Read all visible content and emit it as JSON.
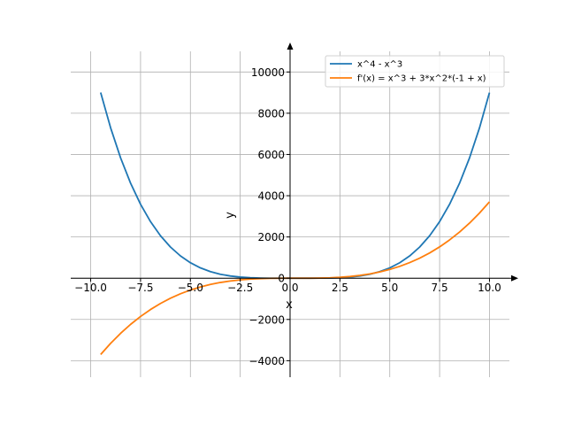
{
  "chart_data": {
    "type": "line",
    "title": "",
    "xlabel": "x",
    "ylabel": "y",
    "xlim": [
      -11,
      11
    ],
    "ylim": [
      -4800,
      11000
    ],
    "grid": true,
    "legend_position": "top-right",
    "x_ticks": [
      -10,
      -7.5,
      -5,
      -2.5,
      0,
      2.5,
      5,
      7.5,
      10
    ],
    "x_tick_labels": [
      "−10.0",
      "−7.5",
      "−5.0",
      "−2.5",
      "0.0",
      "2.5",
      "5.0",
      "7.5",
      "10.0"
    ],
    "y_ticks": [
      -4000,
      -2000,
      0,
      2000,
      4000,
      6000,
      8000,
      10000
    ],
    "y_tick_labels": [
      "−4000",
      "−2000",
      "0",
      "2000",
      "4000",
      "6000",
      "8000",
      "10000"
    ],
    "series": [
      {
        "name": "x^4 - x^3",
        "color": "#1f77b4",
        "x": [
          -9.5,
          -9,
          -8.5,
          -8,
          -7.5,
          -7,
          -6.5,
          -6,
          -5.5,
          -5,
          -4.5,
          -4,
          -3.5,
          -3,
          -2.5,
          -2,
          -1.5,
          -1,
          -0.5,
          0,
          0.5,
          1,
          1.5,
          2,
          2.5,
          3,
          3.5,
          4,
          4.5,
          5,
          5.5,
          6,
          6.5,
          7,
          7.5,
          8,
          8.5,
          9,
          9.5,
          10
        ],
        "y": [
          9002.4,
          7290,
          5834.1,
          4608,
          3585.9,
          2744,
          2059.3,
          1512,
          1081.6,
          750,
          501.2,
          320,
          192.9,
          108,
          54.7,
          24,
          8.4,
          2,
          0.19,
          0,
          -0.06,
          0,
          1.69,
          8,
          23.4,
          54,
          107.2,
          192,
          318.9,
          500,
          748.7,
          1080,
          1510.8,
          2058,
          2742.2,
          3584,
          4606.0,
          5832,
          7287.9,
          9000
        ]
      },
      {
        "name": "f'(x) = x^3 + 3*x^2*(-1 + x)",
        "color": "#ff7f0e",
        "x": [
          -9.5,
          -9,
          -8.5,
          -8,
          -7.5,
          -7,
          -6.5,
          -6,
          -5.5,
          -5,
          -4.5,
          -4,
          -3.5,
          -3,
          -2.5,
          -2,
          -1.5,
          -1,
          -0.5,
          0,
          0.5,
          1,
          1.5,
          2,
          2.5,
          3,
          3.5,
          4,
          4.5,
          5,
          5.5,
          6,
          6.5,
          7,
          7.5,
          8,
          8.5,
          9,
          9.5,
          10
        ],
        "y": [
          -3700.8,
          -3159,
          -2673.3,
          -2240,
          -1856.3,
          -1519,
          -1225.1,
          -972,
          -756.3,
          -575,
          -425.3,
          -304,
          -208.3,
          -135,
          -81.3,
          -44,
          -20.3,
          -7,
          -1.25,
          0,
          -0.25,
          1,
          6.75,
          20,
          43.75,
          81,
          134.75,
          208,
          303.75,
          425,
          574.75,
          756,
          971.75,
          1225,
          1518.75,
          1856,
          2239.75,
          2673,
          3158.75,
          3700
        ]
      }
    ]
  }
}
